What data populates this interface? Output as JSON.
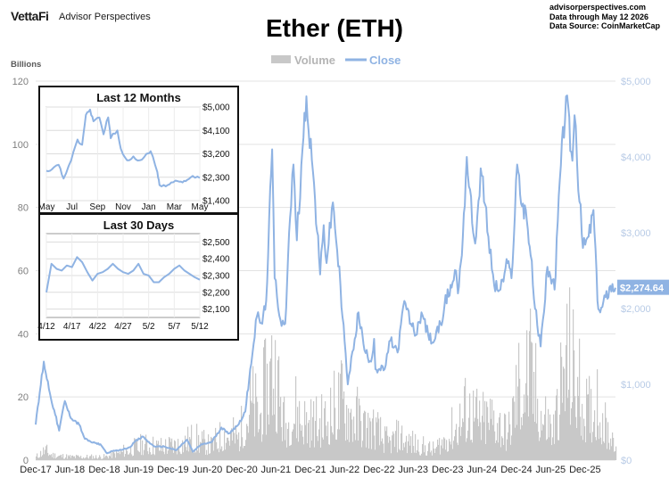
{
  "header": {
    "brand": "VettaFi",
    "brand_sub": "Advisor Perspectives",
    "title": "Ether (ETH)",
    "site": "advisorperspectives.com",
    "through": "Data through May 12 2026",
    "source": "Data Source: CoinMarketCap"
  },
  "colors": {
    "volume": "#c8c8c8",
    "close": "#8fb3e3",
    "right_axis": "#b8cbe6",
    "left_axis": "#7f7f7f",
    "grid": "#e3e3e3",
    "last_label_bg": "#8fb3e3"
  },
  "chart_data": [
    {
      "type": "area",
      "title": "Ether (ETH)",
      "ylabel_left": "Billions",
      "legend": [
        "Volume",
        "Close"
      ],
      "legend_position": "top-center",
      "grid": true,
      "x_ticks": [
        "Dec-17",
        "Jun-18",
        "Dec-18",
        "Jun-19",
        "Dec-19",
        "Jun-20",
        "Dec-20",
        "Jun-21",
        "Dec-21",
        "Jun-22",
        "Dec-22",
        "Jun-23",
        "Dec-23",
        "Jun-24",
        "Dec-24",
        "Jun-25",
        "Dec-25"
      ],
      "y_left_ticks": [
        "0",
        "20",
        "40",
        "60",
        "80",
        "100",
        "120"
      ],
      "y_left_range": [
        0,
        120
      ],
      "y_right_ticks": [
        "$0",
        "$1,000",
        "$2,000",
        "$3,000",
        "$4,000",
        "$5,000"
      ],
      "y_right_range": [
        0,
        5000
      ],
      "last_value_label": "$2,274.64",
      "series": [
        {
          "name": "Close",
          "axis": "right",
          "points": [
            [
              "2017-12-01",
              470
            ],
            [
              "2018-01-13",
              1300
            ],
            [
              "2018-02-15",
              880
            ],
            [
              "2018-03-15",
              600
            ],
            [
              "2018-04-05",
              390
            ],
            [
              "2018-05-05",
              780
            ],
            [
              "2018-06-01",
              580
            ],
            [
              "2018-07-20",
              470
            ],
            [
              "2018-08-20",
              280
            ],
            [
              "2018-10-01",
              230
            ],
            [
              "2018-11-10",
              210
            ],
            [
              "2018-12-15",
              90
            ],
            [
              "2019-01-15",
              120
            ],
            [
              "2019-03-01",
              135
            ],
            [
              "2019-04-15",
              170
            ],
            [
              "2019-05-15",
              250
            ],
            [
              "2019-06-25",
              310
            ],
            [
              "2019-08-01",
              220
            ],
            [
              "2019-09-01",
              175
            ],
            [
              "2019-10-15",
              180
            ],
            [
              "2019-12-18",
              130
            ],
            [
              "2020-02-14",
              270
            ],
            [
              "2020-03-16",
              110
            ],
            [
              "2020-05-01",
              210
            ],
            [
              "2020-06-20",
              230
            ],
            [
              "2020-08-15",
              430
            ],
            [
              "2020-09-20",
              350
            ],
            [
              "2020-11-10",
              460
            ],
            [
              "2020-12-20",
              640
            ],
            [
              "2021-01-15",
              1200
            ],
            [
              "2021-02-20",
              1900
            ],
            [
              "2021-03-20",
              1800
            ],
            [
              "2021-04-10",
              2100
            ],
            [
              "2021-05-12",
              4100
            ],
            [
              "2021-05-25",
              2400
            ],
            [
              "2021-06-25",
              1850
            ],
            [
              "2021-07-20",
              1800
            ],
            [
              "2021-08-15",
              3200
            ],
            [
              "2021-09-02",
              3900
            ],
            [
              "2021-09-20",
              2900
            ],
            [
              "2021-10-20",
              4100
            ],
            [
              "2021-11-10",
              4800
            ],
            [
              "2021-12-15",
              3800
            ],
            [
              "2022-01-22",
              2450
            ],
            [
              "2022-02-10",
              3100
            ],
            [
              "2022-02-25",
              2600
            ],
            [
              "2022-03-31",
              3400
            ],
            [
              "2022-05-10",
              2300
            ],
            [
              "2022-06-18",
              1000
            ],
            [
              "2022-07-25",
              1600
            ],
            [
              "2022-08-14",
              1950
            ],
            [
              "2022-09-15",
              1450
            ],
            [
              "2022-10-20",
              1300
            ],
            [
              "2022-11-05",
              1600
            ],
            [
              "2022-11-12",
              1200
            ],
            [
              "2022-12-31",
              1200
            ],
            [
              "2023-01-31",
              1580
            ],
            [
              "2023-03-10",
              1420
            ],
            [
              "2023-04-15",
              2100
            ],
            [
              "2023-05-20",
              1800
            ],
            [
              "2023-06-15",
              1650
            ],
            [
              "2023-07-15",
              1950
            ],
            [
              "2023-08-20",
              1650
            ],
            [
              "2023-09-15",
              1550
            ],
            [
              "2023-10-25",
              1800
            ],
            [
              "2023-11-15",
              2050
            ],
            [
              "2023-12-28",
              2350
            ],
            [
              "2024-01-15",
              2500
            ],
            [
              "2024-01-25",
              2200
            ],
            [
              "2024-02-20",
              2950
            ],
            [
              "2024-03-12",
              4000
            ],
            [
              "2024-04-15",
              3000
            ],
            [
              "2024-05-01",
              2950
            ],
            [
              "2024-05-25",
              3850
            ],
            [
              "2024-07-05",
              2950
            ],
            [
              "2024-08-05",
              2300
            ],
            [
              "2024-09-07",
              2250
            ],
            [
              "2024-10-15",
              2600
            ],
            [
              "2024-11-05",
              2400
            ],
            [
              "2024-12-05",
              3900
            ],
            [
              "2024-12-31",
              3350
            ],
            [
              "2025-01-20",
              3300
            ],
            [
              "2025-02-15",
              2700
            ],
            [
              "2025-03-10",
              2000
            ],
            [
              "2025-04-09",
              1500
            ],
            [
              "2025-05-15",
              2550
            ],
            [
              "2025-06-22",
              2250
            ],
            [
              "2025-07-20",
              3700
            ],
            [
              "2025-08-22",
              4800
            ],
            [
              "2025-09-25",
              3950
            ],
            [
              "2025-10-06",
              4550
            ],
            [
              "2025-10-20",
              3900
            ],
            [
              "2025-11-20",
              2800
            ],
            [
              "2025-12-20",
              2950
            ],
            [
              "2026-01-15",
              3300
            ],
            [
              "2026-02-05",
              2100
            ],
            [
              "2026-02-20",
              1950
            ],
            [
              "2026-03-20",
              2150
            ],
            [
              "2026-04-15",
              2300
            ],
            [
              "2026-05-12",
              2274.64
            ]
          ]
        },
        {
          "name": "Volume",
          "axis": "left",
          "unit": "Billions",
          "points": [
            [
              "2017-12-01",
              2
            ],
            [
              "2018-01-15",
              6
            ],
            [
              "2018-03-01",
              3
            ],
            [
              "2018-06-01",
              2
            ],
            [
              "2018-12-01",
              2
            ],
            [
              "2019-03-01",
              5
            ],
            [
              "2019-06-25",
              9
            ],
            [
              "2019-10-01",
              8
            ],
            [
              "2020-01-15",
              10
            ],
            [
              "2020-03-15",
              13
            ],
            [
              "2020-06-15",
              8
            ],
            [
              "2020-09-01",
              16
            ],
            [
              "2020-11-15",
              14
            ],
            [
              "2021-01-15",
              35
            ],
            [
              "2021-03-01",
              25
            ],
            [
              "2021-05-15",
              60
            ],
            [
              "2021-07-15",
              20
            ],
            [
              "2021-09-05",
              30
            ],
            [
              "2021-11-15",
              22
            ],
            [
              "2022-02-01",
              22
            ],
            [
              "2022-05-15",
              35
            ],
            [
              "2022-06-18",
              30
            ],
            [
              "2022-09-15",
              20
            ],
            [
              "2022-11-10",
              18
            ],
            [
              "2023-01-15",
              10
            ],
            [
              "2023-03-15",
              14
            ],
            [
              "2023-06-15",
              9
            ],
            [
              "2023-09-15",
              6
            ],
            [
              "2023-12-15",
              16
            ],
            [
              "2024-03-10",
              30
            ],
            [
              "2024-05-25",
              22
            ],
            [
              "2024-08-05",
              26
            ],
            [
              "2024-10-15",
              14
            ],
            [
              "2024-12-05",
              42
            ],
            [
              "2025-02-03",
              52
            ],
            [
              "2025-04-09",
              28
            ],
            [
              "2025-06-15",
              18
            ],
            [
              "2025-08-22",
              60
            ],
            [
              "2025-10-10",
              48
            ],
            [
              "2025-12-15",
              26
            ],
            [
              "2026-02-05",
              36
            ],
            [
              "2026-03-20",
              18
            ],
            [
              "2026-05-12",
              14
            ]
          ]
        }
      ]
    },
    {
      "type": "line",
      "title": "Last 12 Months",
      "x_ticks": [
        "May",
        "Jul",
        "Sep",
        "Nov",
        "Jan",
        "Mar",
        "May"
      ],
      "y_ticks": [
        "$1,400",
        "$2,300",
        "$3,200",
        "$4,100",
        "$5,000"
      ],
      "y_range": [
        1400,
        5000
      ],
      "series": [
        {
          "name": "Close",
          "points": [
            [
              "2025-05-12",
              2550
            ],
            [
              "2025-05-25",
              2600
            ],
            [
              "2025-06-10",
              2780
            ],
            [
              "2025-06-22",
              2250
            ],
            [
              "2025-07-10",
              2950
            ],
            [
              "2025-07-25",
              3750
            ],
            [
              "2025-08-05",
              3550
            ],
            [
              "2025-08-14",
              4700
            ],
            [
              "2025-08-24",
              4900
            ],
            [
              "2025-09-01",
              4450
            ],
            [
              "2025-09-15",
              4600
            ],
            [
              "2025-09-25",
              3950
            ],
            [
              "2025-10-06",
              4600
            ],
            [
              "2025-10-12",
              3800
            ],
            [
              "2025-10-28",
              4100
            ],
            [
              "2025-11-05",
              3400
            ],
            [
              "2025-11-20",
              2950
            ],
            [
              "2025-12-05",
              3100
            ],
            [
              "2025-12-20",
              2950
            ],
            [
              "2026-01-05",
              3200
            ],
            [
              "2026-01-15",
              3300
            ],
            [
              "2026-01-31",
              2500
            ],
            [
              "2026-02-05",
              2000
            ],
            [
              "2026-02-20",
              1950
            ],
            [
              "2026-03-05",
              2100
            ],
            [
              "2026-03-20",
              2150
            ],
            [
              "2026-04-01",
              2100
            ],
            [
              "2026-04-12",
              2200
            ],
            [
              "2026-04-25",
              2350
            ],
            [
              "2026-05-12",
              2275
            ]
          ]
        }
      ]
    },
    {
      "type": "line",
      "title": "Last 30 Days",
      "x_ticks": [
        "4/12",
        "4/17",
        "4/22",
        "4/27",
        "5/2",
        "5/7",
        "5/12"
      ],
      "y_ticks": [
        "$2,100",
        "$2,200",
        "$2,300",
        "$2,400",
        "$2,500"
      ],
      "y_range": [
        2050,
        2550
      ],
      "series": [
        {
          "name": "Close",
          "points": [
            [
              "2026-04-12",
              2200
            ],
            [
              "2026-04-13",
              2370
            ],
            [
              "2026-04-14",
              2340
            ],
            [
              "2026-04-15",
              2330
            ],
            [
              "2026-04-16",
              2360
            ],
            [
              "2026-04-17",
              2350
            ],
            [
              "2026-04-18",
              2410
            ],
            [
              "2026-04-19",
              2380
            ],
            [
              "2026-04-20",
              2320
            ],
            [
              "2026-04-21",
              2270
            ],
            [
              "2026-04-22",
              2310
            ],
            [
              "2026-04-23",
              2320
            ],
            [
              "2026-04-24",
              2340
            ],
            [
              "2026-04-25",
              2370
            ],
            [
              "2026-04-26",
              2340
            ],
            [
              "2026-04-27",
              2320
            ],
            [
              "2026-04-28",
              2310
            ],
            [
              "2026-04-29",
              2330
            ],
            [
              "2026-04-30",
              2370
            ],
            [
              "2026-05-01",
              2310
            ],
            [
              "2026-05-02",
              2300
            ],
            [
              "2026-05-03",
              2260
            ],
            [
              "2026-05-04",
              2260
            ],
            [
              "2026-05-05",
              2290
            ],
            [
              "2026-05-06",
              2310
            ],
            [
              "2026-05-07",
              2340
            ],
            [
              "2026-05-08",
              2360
            ],
            [
              "2026-05-09",
              2330
            ],
            [
              "2026-05-10",
              2310
            ],
            [
              "2026-05-11",
              2290
            ],
            [
              "2026-05-12",
              2275
            ]
          ]
        }
      ]
    }
  ]
}
